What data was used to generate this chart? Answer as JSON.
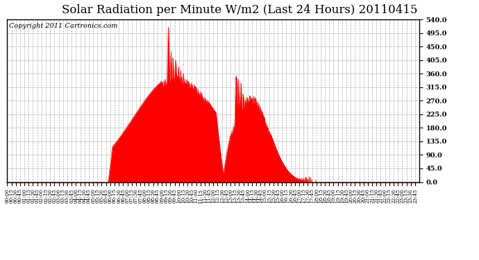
{
  "title": "Solar Radiation per Minute W/m2 (Last 24 Hours) 20110415",
  "copyright": "Copyright 2011 Cartronics.com",
  "fill_color": "#ff0000",
  "line_color": "#ff0000",
  "background_color": "#ffffff",
  "grid_color": "#bbbbbb",
  "dashed_line_color": "#ff0000",
  "ylim": [
    0.0,
    540.0
  ],
  "yticks": [
    0.0,
    45.0,
    90.0,
    135.0,
    180.0,
    225.0,
    270.0,
    315.0,
    360.0,
    405.0,
    450.0,
    495.0,
    540.0
  ],
  "num_minutes": 1440,
  "title_fontsize": 12,
  "copyright_fontsize": 7
}
